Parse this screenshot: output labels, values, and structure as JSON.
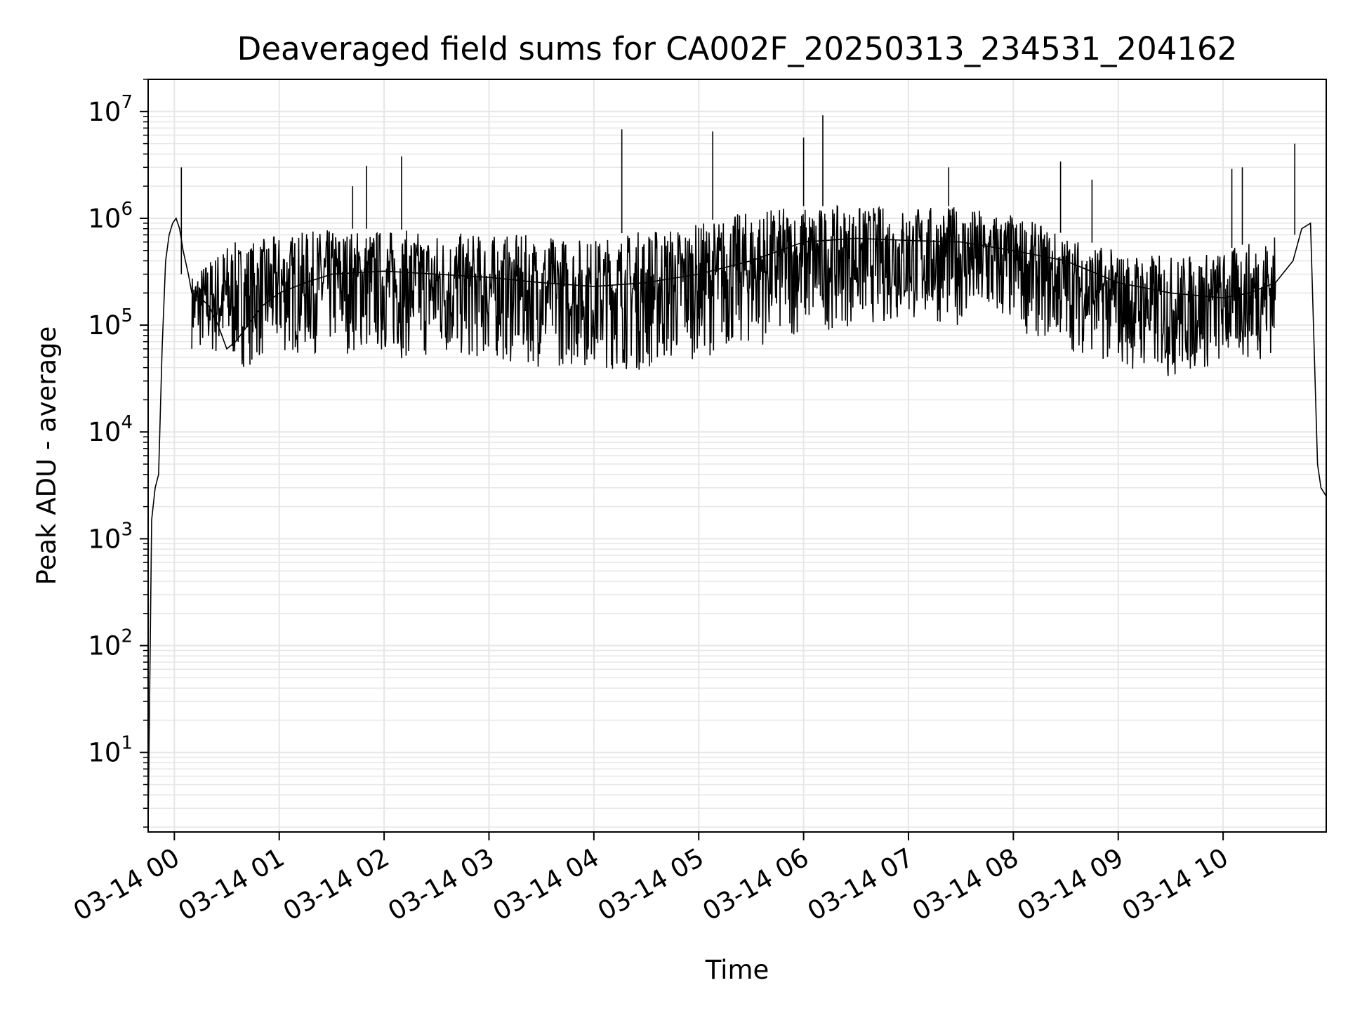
{
  "chart_data": {
    "type": "line",
    "title": "Deaveraged field sums for CA002F_20250313_234531_204162",
    "xlabel": "Time",
    "ylabel": "Peak ADU - average",
    "yscale": "log",
    "ylim": [
      1.8,
      20000000
    ],
    "xlim": [
      "2025-03-13 23:45",
      "2025-03-14 10:59"
    ],
    "x_ticks": [
      "03-14 00",
      "03-14 01",
      "03-14 02",
      "03-14 03",
      "03-14 04",
      "03-14 05",
      "03-14 06",
      "03-14 07",
      "03-14 08",
      "03-14 09",
      "03-14 10"
    ],
    "y_ticks": [
      {
        "base": "10",
        "exp": "1",
        "value": 10
      },
      {
        "base": "10",
        "exp": "2",
        "value": 100
      },
      {
        "base": "10",
        "exp": "3",
        "value": 1000
      },
      {
        "base": "10",
        "exp": "4",
        "value": 10000
      },
      {
        "base": "10",
        "exp": "5",
        "value": 100000
      },
      {
        "base": "10",
        "exp": "6",
        "value": 1000000
      },
      {
        "base": "10",
        "exp": "7",
        "value": 10000000
      }
    ],
    "grid": true,
    "line_color": "#000000",
    "grid_color": "#e6e6e6",
    "series": [
      {
        "x": [
          "2025-03-13 23:45",
          "2025-03-13 23:47",
          "2025-03-13 23:49",
          "2025-03-13 23:51",
          "2025-03-13 23:53",
          "2025-03-13 23:55",
          "2025-03-13 23:57",
          "2025-03-13 23:59",
          "2025-03-14 00:01",
          "2025-03-14 00:03",
          "2025-03-14 00:05",
          "2025-03-14 00:08",
          "2025-03-14 00:10",
          "2025-03-14 00:15",
          "2025-03-14 00:20",
          "2025-03-14 00:25",
          "2025-03-14 00:30",
          "2025-03-14 00:35",
          "2025-03-14 00:40",
          "2025-03-14 00:50",
          "2025-03-14 01:00",
          "2025-03-14 01:15",
          "2025-03-14 01:30",
          "2025-03-14 02:00",
          "2025-03-14 02:30",
          "2025-03-14 03:00",
          "2025-03-14 03:30",
          "2025-03-14 04:00",
          "2025-03-14 04:30",
          "2025-03-14 05:00",
          "2025-03-14 05:30",
          "2025-03-14 06:00",
          "2025-03-14 06:30",
          "2025-03-14 07:00",
          "2025-03-14 07:30",
          "2025-03-14 08:00",
          "2025-03-14 08:30",
          "2025-03-14 09:00",
          "2025-03-14 09:30",
          "2025-03-14 10:00",
          "2025-03-14 10:15",
          "2025-03-14 10:30",
          "2025-03-14 10:40",
          "2025-03-14 10:45",
          "2025-03-14 10:50",
          "2025-03-14 10:54",
          "2025-03-14 10:56",
          "2025-03-14 10:59"
        ],
        "y": [
          2,
          1500,
          3000,
          4000,
          60000,
          400000,
          700000,
          900000,
          1000000,
          800000,
          500000,
          300000,
          200000,
          180000,
          150000,
          100000,
          60000,
          70000,
          90000,
          150000,
          200000,
          250000,
          300000,
          320000,
          300000,
          280000,
          250000,
          230000,
          250000,
          300000,
          400000,
          600000,
          650000,
          620000,
          600000,
          500000,
          400000,
          250000,
          200000,
          180000,
          200000,
          250000,
          400000,
          800000,
          900000,
          5000,
          3000,
          2500
        ],
        "spikes": [
          {
            "x": "2025-03-14 00:04",
            "y": 3000000
          },
          {
            "x": "2025-03-14 01:42",
            "y": 2000000
          },
          {
            "x": "2025-03-14 01:50",
            "y": 3100000
          },
          {
            "x": "2025-03-14 02:10",
            "y": 3800000
          },
          {
            "x": "2025-03-14 04:16",
            "y": 6800000
          },
          {
            "x": "2025-03-14 05:08",
            "y": 6500000
          },
          {
            "x": "2025-03-14 06:00",
            "y": 5700000
          },
          {
            "x": "2025-03-14 06:11",
            "y": 9200000
          },
          {
            "x": "2025-03-14 07:23",
            "y": 3000000
          },
          {
            "x": "2025-03-14 08:27",
            "y": 3400000
          },
          {
            "x": "2025-03-14 08:45",
            "y": 2300000
          },
          {
            "x": "2025-03-14 10:05",
            "y": 2900000
          },
          {
            "x": "2025-03-14 10:11",
            "y": 3000000
          },
          {
            "x": "2025-03-14 10:41",
            "y": 5000000
          }
        ],
        "band": {
          "x": [
            "2025-03-14 00:10",
            "2025-03-14 00:30",
            "2025-03-14 00:40",
            "2025-03-14 01:00",
            "2025-03-14 01:30",
            "2025-03-14 02:00",
            "2025-03-14 02:30",
            "2025-03-14 03:00",
            "2025-03-14 03:30",
            "2025-03-14 04:00",
            "2025-03-14 04:30",
            "2025-03-14 05:00",
            "2025-03-14 05:30",
            "2025-03-14 06:00",
            "2025-03-14 06:30",
            "2025-03-14 07:00",
            "2025-03-14 07:30",
            "2025-03-14 08:00",
            "2025-03-14 08:30",
            "2025-03-14 09:00",
            "2025-03-14 09:30",
            "2025-03-14 10:00",
            "2025-03-14 10:30"
          ],
          "low": [
            60000,
            40000,
            40000,
            50000,
            55000,
            50000,
            45000,
            45000,
            40000,
            40000,
            35000,
            50000,
            60000,
            80000,
            100000,
            100000,
            100000,
            90000,
            60000,
            40000,
            30000,
            40000,
            50000
          ],
          "high": [
            300000,
            600000,
            600000,
            700000,
            800000,
            800000,
            750000,
            700000,
            700000,
            650000,
            800000,
            900000,
            1200000,
            1300000,
            1300000,
            1300000,
            1300000,
            1100000,
            700000,
            500000,
            450000,
            500000,
            700000
          ]
        }
      }
    ]
  }
}
